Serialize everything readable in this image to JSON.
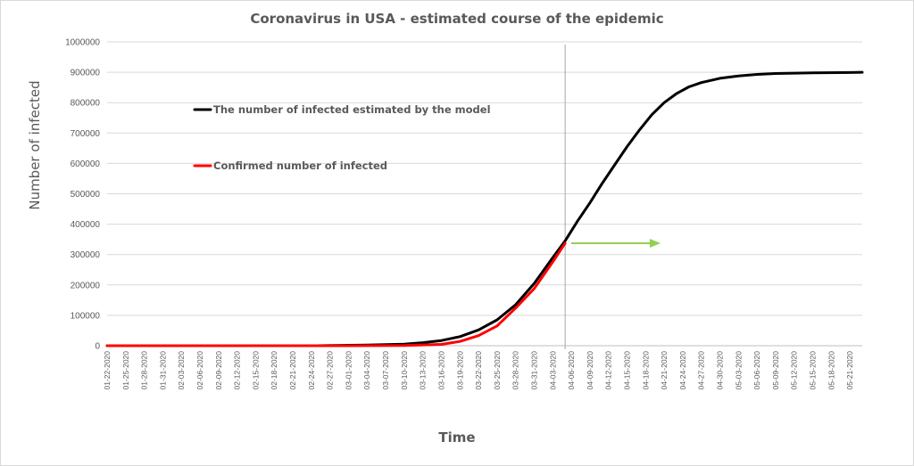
{
  "chart_data": {
    "type": "line",
    "title": "Coronavirus in USA - estimated course of the epidemic",
    "xlabel": "Time",
    "ylabel": "Number of infected",
    "ylim": [
      0,
      1000000
    ],
    "yticks": [
      0,
      100000,
      200000,
      300000,
      400000,
      500000,
      600000,
      700000,
      800000,
      900000,
      1000000
    ],
    "grid": true,
    "legend": "inside-top-left",
    "x_start": "01-22-2020",
    "x_end": "05-23-2020",
    "x_ticks": [
      "01-22-2020",
      "01-25-2020",
      "01-28-2020",
      "01-31-2020",
      "02-03-2020",
      "02-06-2020",
      "02-09-2020",
      "02-12-2020",
      "02-15-2020",
      "02-18-2020",
      "02-21-2020",
      "02-24-2020",
      "02-27-2020",
      "03-01-2020",
      "03-04-2020",
      "03-07-2020",
      "03-10-2020",
      "03-13-2020",
      "03-16-2020",
      "03-19-2020",
      "03-22-2020",
      "03-25-2020",
      "03-28-2020",
      "03-31-2020",
      "04-03-2020",
      "04-06-2020",
      "04-09-2020",
      "04-12-2020",
      "04-15-2020",
      "04-18-2020",
      "04-21-2020",
      "04-24-2020",
      "04-27-2020",
      "04-30-2020",
      "05-03-2020",
      "05-06-2020",
      "05-09-2020",
      "05-12-2020",
      "05-15-2020",
      "05-18-2020",
      "05-21-2020"
    ],
    "vertical_marker": "04-05-2020",
    "arrow_color": "#92d050",
    "series": [
      {
        "name": "The number of infected estimated by the model",
        "color": "#000000",
        "points": [
          [
            "01-22-2020",
            0
          ],
          [
            "02-10-2020",
            0
          ],
          [
            "02-25-2020",
            0
          ],
          [
            "02-27-2020",
            1000
          ],
          [
            "03-04-2020",
            2000
          ],
          [
            "03-10-2020",
            5000
          ],
          [
            "03-13-2020",
            10000
          ],
          [
            "03-16-2020",
            17000
          ],
          [
            "03-19-2020",
            30000
          ],
          [
            "03-22-2020",
            52000
          ],
          [
            "03-25-2020",
            85000
          ],
          [
            "03-28-2020",
            135000
          ],
          [
            "03-31-2020",
            205000
          ],
          [
            "04-03-2020",
            290000
          ],
          [
            "04-05-2020",
            345000
          ],
          [
            "04-07-2020",
            410000
          ],
          [
            "04-09-2020",
            470000
          ],
          [
            "04-11-2020",
            535000
          ],
          [
            "04-13-2020",
            595000
          ],
          [
            "04-15-2020",
            655000
          ],
          [
            "04-17-2020",
            710000
          ],
          [
            "04-19-2020",
            760000
          ],
          [
            "04-21-2020",
            800000
          ],
          [
            "04-23-2020",
            830000
          ],
          [
            "04-25-2020",
            852000
          ],
          [
            "04-27-2020",
            866000
          ],
          [
            "04-30-2020",
            880000
          ],
          [
            "05-03-2020",
            888000
          ],
          [
            "05-06-2020",
            893000
          ],
          [
            "05-09-2020",
            896000
          ],
          [
            "05-12-2020",
            897000
          ],
          [
            "05-15-2020",
            898000
          ],
          [
            "05-21-2020",
            899000
          ],
          [
            "05-23-2020",
            900000
          ]
        ]
      },
      {
        "name": "Confirmed number of infected",
        "color": "#ff0000",
        "points": [
          [
            "01-22-2020",
            0
          ],
          [
            "03-01-2020",
            0
          ],
          [
            "03-10-2020",
            1000
          ],
          [
            "03-16-2020",
            4500
          ],
          [
            "03-19-2020",
            14000
          ],
          [
            "03-22-2020",
            33000
          ],
          [
            "03-25-2020",
            65000
          ],
          [
            "03-28-2020",
            124000
          ],
          [
            "03-31-2020",
            188000
          ],
          [
            "04-03-2020",
            276000
          ],
          [
            "04-05-2020",
            337000
          ]
        ]
      }
    ]
  }
}
